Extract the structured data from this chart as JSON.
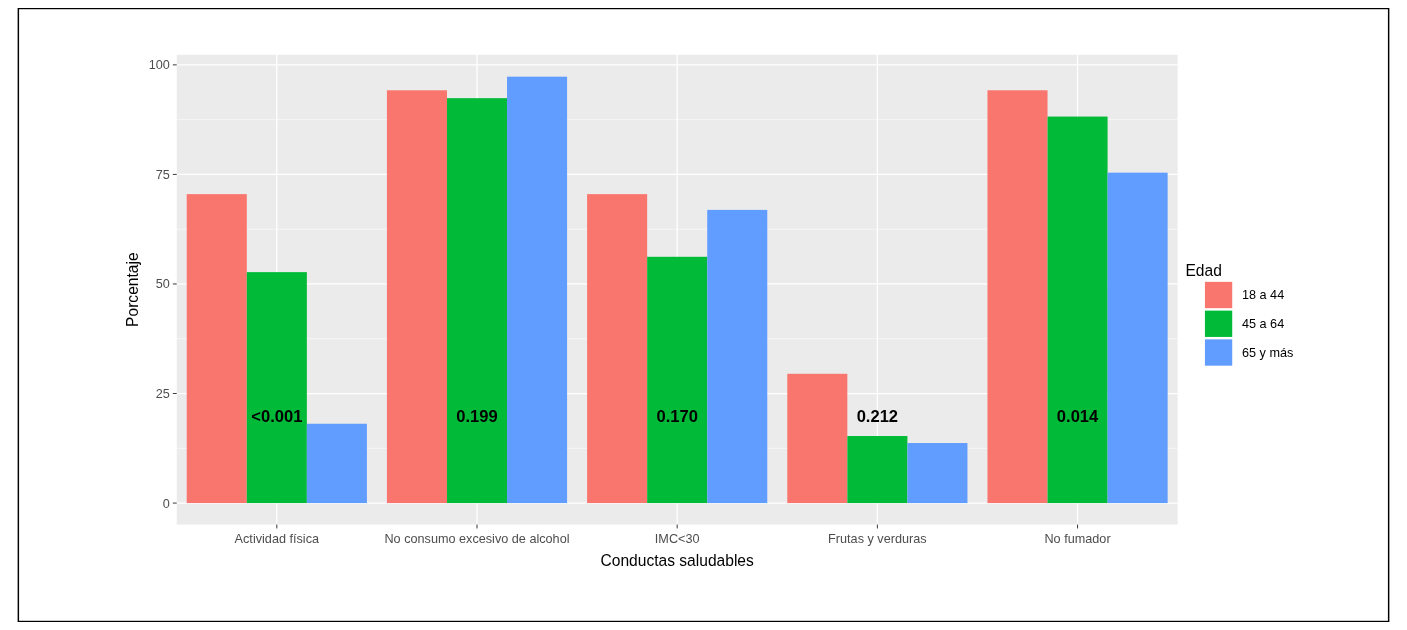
{
  "chart_data": {
    "type": "bar",
    "xlabel": "Conductas saludables",
    "ylabel": "Porcentaje",
    "legend_title": "Edad",
    "categories": [
      "Actividad física",
      "No consumo excesivo de alcohol",
      "IMC<30",
      "Frutas y verduras",
      "No fumador"
    ],
    "series": [
      {
        "name": "18 a 44",
        "color": "#f8766d",
        "values": [
          70.5,
          94.2,
          70.5,
          29.5,
          94.2
        ]
      },
      {
        "name": "45 a 64",
        "color": "#00ba38",
        "values": [
          52.7,
          92.4,
          56.2,
          15.3,
          88.2
        ]
      },
      {
        "name": "65 y más",
        "color": "#619cff",
        "values": [
          18.1,
          97.3,
          66.9,
          13.7,
          75.4
        ]
      }
    ],
    "ylim": [
      -4.9,
      102.3
    ],
    "yticks": [
      0,
      25,
      50,
      75,
      100
    ],
    "grid": true,
    "legend": "right",
    "annotations": [
      "<0.001",
      "0.199",
      "0.170",
      "0.212",
      "0.014"
    ]
  }
}
